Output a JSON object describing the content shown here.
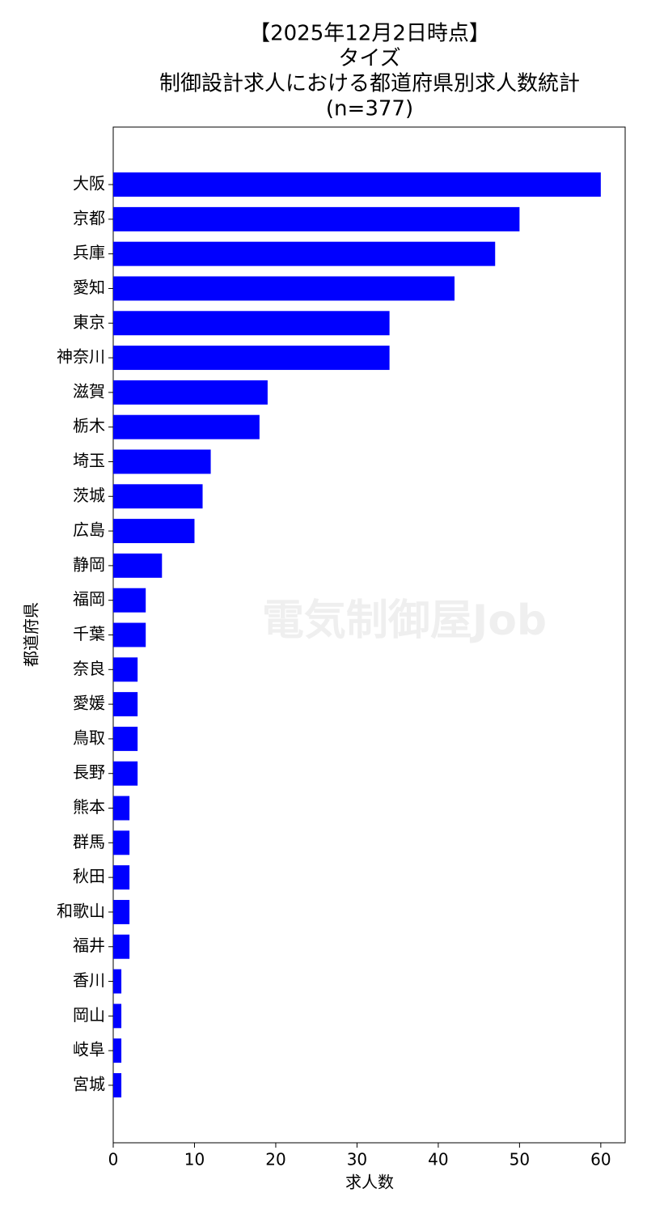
{
  "chart_data": {
    "type": "barh",
    "title": [
      "【2025年12月2日時点】",
      "タイズ",
      "制御設計求人における都道府県別求人数統計",
      "(n=377)"
    ],
    "xlabel": "求人数",
    "ylabel": "都道府県",
    "watermark": "電気制御屋Job",
    "categories": [
      "大阪",
      "京都",
      "兵庫",
      "愛知",
      "東京",
      "神奈川",
      "滋賀",
      "栃木",
      "埼玉",
      "茨城",
      "広島",
      "静岡",
      "福岡",
      "千葉",
      "奈良",
      "愛媛",
      "鳥取",
      "長野",
      "熊本",
      "群馬",
      "秋田",
      "和歌山",
      "福井",
      "香川",
      "岡山",
      "岐阜",
      "宮城"
    ],
    "values": [
      60,
      50,
      47,
      42,
      34,
      34,
      19,
      18,
      12,
      11,
      10,
      6,
      4,
      4,
      3,
      3,
      3,
      3,
      2,
      2,
      2,
      2,
      2,
      1,
      1,
      1,
      1
    ],
    "color": "#0000ff",
    "xlim": [
      0,
      63
    ],
    "xticks": [
      0,
      10,
      20,
      30,
      40,
      50,
      60
    ],
    "grid": false
  }
}
